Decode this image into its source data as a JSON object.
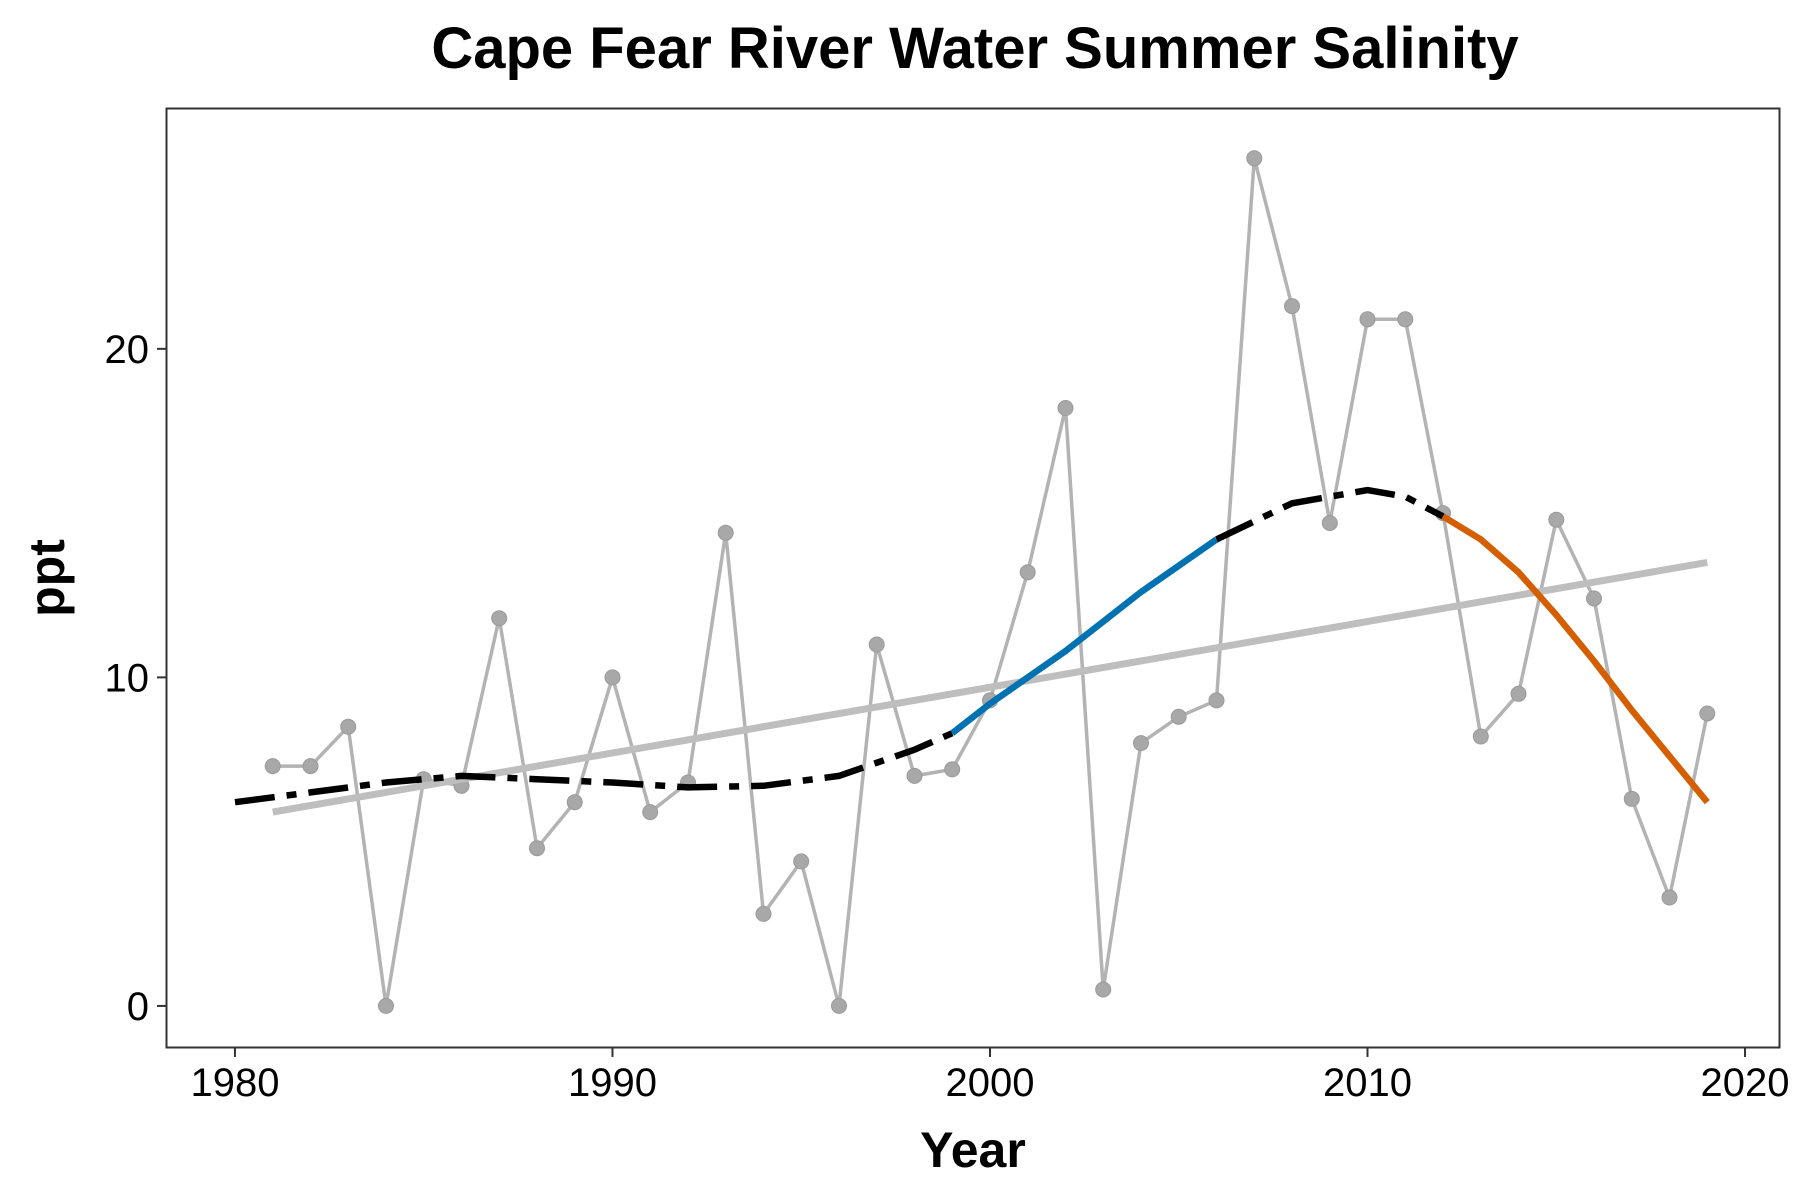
{
  "chart_data": {
    "type": "line",
    "title": "Cape Fear River Water Summer Salinity",
    "xlabel": "Year",
    "ylabel": "ppt",
    "xlim": [
      1978.2,
      2020.9
    ],
    "ylim": [
      -1.25,
      27.3
    ],
    "x_ticks": [
      1980,
      1990,
      2000,
      2010,
      2020
    ],
    "y_ticks": [
      0,
      10,
      20
    ],
    "grid": false,
    "legend": "none",
    "colors": {
      "observed": "#b3b3b3",
      "trend": "#bebebe",
      "smooth": "#000000",
      "increasing": "#0072b2",
      "decreasing": "#d55e00"
    },
    "series": [
      {
        "type": "line+markers",
        "x": [
          1981,
          1982,
          1983,
          1984,
          1985,
          1986,
          1987,
          1988,
          1989,
          1990,
          1991,
          1992,
          1993,
          1994,
          1995,
          1996,
          1997,
          1998,
          1999,
          2000,
          2001,
          2002,
          2003,
          2004,
          2005,
          2006,
          2007,
          2008,
          2009,
          2010,
          2011,
          2012,
          2013,
          2014,
          2015,
          2016,
          2017,
          2018,
          2019
        ],
        "y": [
          7.3,
          7.3,
          8.5,
          0.0,
          6.9,
          6.7,
          11.8,
          4.8,
          6.2,
          10.0,
          5.9,
          6.8,
          14.4,
          2.8,
          4.4,
          0.0,
          11.0,
          7.0,
          7.2,
          9.3,
          13.2,
          18.2,
          0.5,
          8.0,
          8.8,
          9.3,
          25.8,
          21.3,
          14.7,
          20.9,
          20.9,
          15.0,
          8.2,
          9.5,
          14.8,
          12.4,
          6.3,
          3.3,
          8.9
        ]
      },
      {
        "type": "linear-trend",
        "x": [
          1981,
          2019
        ],
        "y": [
          5.9,
          13.5
        ]
      },
      {
        "type": "smooth",
        "x": [
          1980,
          1982,
          1984,
          1986,
          1988,
          1990,
          1992,
          1994,
          1996,
          1998,
          1999,
          2000,
          2002,
          2004,
          2006,
          2008,
          2010,
          2011,
          2012,
          2013,
          2014,
          2015,
          2016,
          2017,
          2018,
          2019
        ],
        "y": [
          6.2,
          6.5,
          6.8,
          7.0,
          6.9,
          6.8,
          6.65,
          6.7,
          7.0,
          7.8,
          8.3,
          9.2,
          10.8,
          12.6,
          14.2,
          15.3,
          15.7,
          15.5,
          14.9,
          14.2,
          13.2,
          11.9,
          10.5,
          9.0,
          7.6,
          6.2
        ],
        "segments": [
          {
            "style": "dashed",
            "from": 1980,
            "to": 1999
          },
          {
            "style": "increasing",
            "from": 1999,
            "to": 2006
          },
          {
            "style": "dashed",
            "from": 2006,
            "to": 2012
          },
          {
            "style": "decreasing",
            "from": 2012,
            "to": 2019
          }
        ]
      }
    ]
  }
}
